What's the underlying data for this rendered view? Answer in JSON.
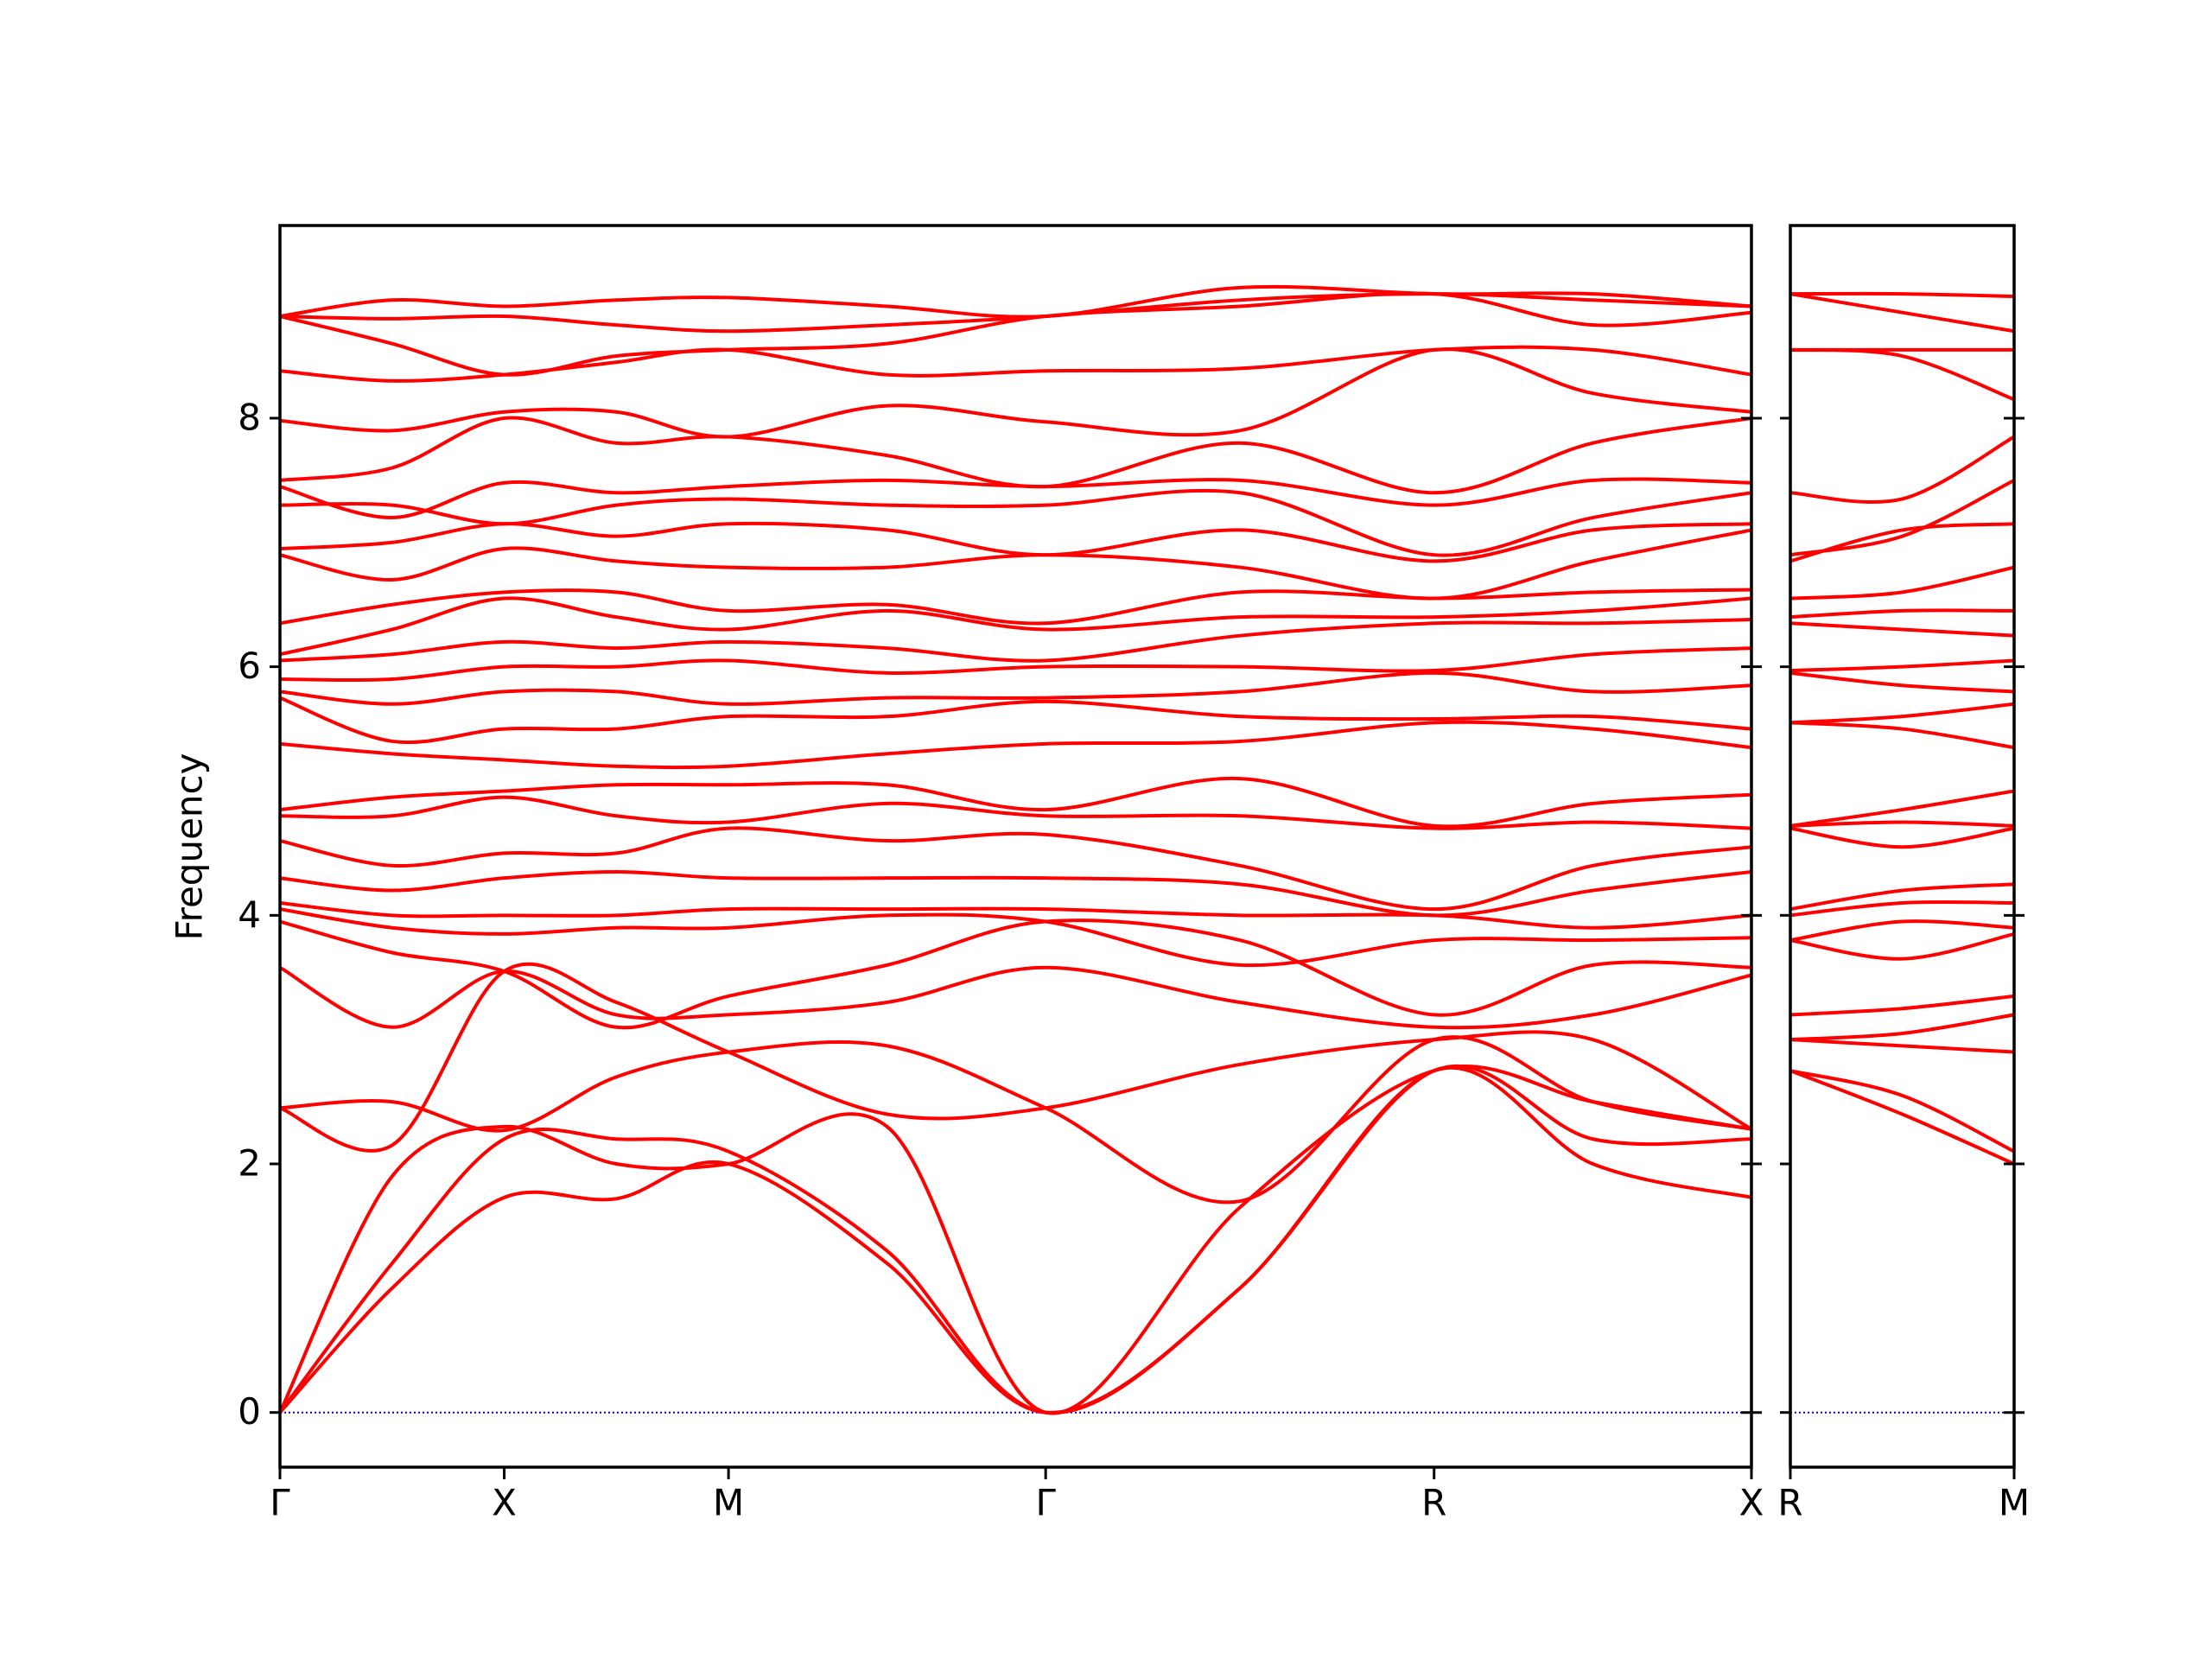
{
  "chart_data": [
    {
      "type": "line",
      "y_label": "Frequency",
      "color": "#ff0000",
      "x": [
        0,
        0.5,
        1,
        1.5,
        2,
        2.707,
        3.414,
        4.28,
        5.146,
        5.854,
        6.561
      ],
      "xlim": [
        0,
        6.561
      ],
      "xticks": [
        {
          "value": 0,
          "label": "Γ"
        },
        {
          "value": 1,
          "label": "X"
        },
        {
          "value": 2,
          "label": "M"
        },
        {
          "value": 3.414,
          "label": "Γ"
        },
        {
          "value": 5.146,
          "label": "R"
        },
        {
          "value": 6.561,
          "label": "X"
        }
      ],
      "ylim": [
        -0.44,
        9.55
      ],
      "yticks": [
        0,
        2,
        4,
        6,
        8
      ],
      "show_ytick_labels": true,
      "zero_line": {
        "value": 0,
        "color": "#0000cc",
        "style": "dotted"
      },
      "series": [
        {
          "values": [
            0,
            1.0,
            1.73,
            1.72,
            2.0,
            1.2,
            0,
            1.0,
            2.75,
            2.0,
            1.73
          ]
        },
        {
          "values": [
            0,
            1.2,
            2.2,
            2.2,
            2.1,
            1.3,
            0,
            1.0,
            2.75,
            2.2,
            2.2
          ]
        },
        {
          "values": [
            0,
            1.9,
            2.3,
            2.0,
            2.0,
            2.3,
            0,
            1.65,
            2.75,
            2.5,
            2.28
          ]
        },
        {
          "values": [
            2.45,
            2.5,
            2.27,
            2.7,
            2.9,
            2.95,
            2.45,
            1.7,
            3.0,
            2.5,
            2.28
          ]
        },
        {
          "values": [
            2.45,
            2.15,
            3.55,
            3.3,
            2.9,
            2.4,
            2.45,
            2.8,
            3.0,
            3.0,
            2.28
          ]
        },
        {
          "values": [
            3.58,
            3.1,
            3.55,
            3.2,
            3.2,
            3.3,
            3.58,
            3.3,
            3.1,
            3.2,
            3.52
          ]
        },
        {
          "values": [
            3.95,
            3.7,
            3.55,
            3.1,
            3.35,
            3.6,
            3.95,
            3.8,
            3.2,
            3.6,
            3.58
          ]
        },
        {
          "values": [
            4.05,
            3.9,
            3.85,
            3.9,
            3.9,
            4.0,
            3.95,
            3.6,
            3.8,
            3.8,
            3.82
          ]
        },
        {
          "values": [
            4.1,
            4.0,
            4.0,
            4.0,
            4.05,
            4.05,
            4.05,
            4.0,
            4.0,
            3.9,
            4.0
          ]
        },
        {
          "values": [
            4.3,
            4.2,
            4.3,
            4.35,
            4.3,
            4.3,
            4.3,
            4.25,
            4.0,
            4.2,
            4.35
          ]
        },
        {
          "values": [
            4.6,
            4.4,
            4.5,
            4.5,
            4.7,
            4.6,
            4.65,
            4.4,
            4.05,
            4.4,
            4.55
          ]
        },
        {
          "values": [
            4.8,
            4.8,
            4.95,
            4.8,
            4.75,
            4.9,
            4.8,
            4.8,
            4.7,
            4.75,
            4.7
          ]
        },
        {
          "values": [
            4.85,
            4.95,
            5.0,
            5.05,
            5.05,
            5.05,
            4.85,
            5.1,
            4.72,
            4.9,
            4.97
          ]
        },
        {
          "values": [
            5.38,
            5.3,
            5.25,
            5.2,
            5.2,
            5.3,
            5.38,
            5.4,
            5.55,
            5.5,
            5.35
          ]
        },
        {
          "values": [
            5.75,
            5.4,
            5.5,
            5.5,
            5.6,
            5.6,
            5.72,
            5.6,
            5.58,
            5.6,
            5.5
          ]
        },
        {
          "values": [
            5.8,
            5.7,
            5.8,
            5.8,
            5.7,
            5.75,
            5.75,
            5.8,
            5.95,
            5.8,
            5.85
          ]
        },
        {
          "values": [
            5.9,
            5.9,
            6.0,
            6.0,
            6.05,
            5.95,
            6.0,
            6.0,
            5.97,
            6.1,
            6.15
          ]
        },
        {
          "values": [
            6.05,
            6.1,
            6.2,
            6.15,
            6.2,
            6.15,
            6.05,
            6.25,
            6.35,
            6.35,
            6.38
          ]
        },
        {
          "values": [
            6.1,
            6.3,
            6.55,
            6.4,
            6.3,
            6.45,
            6.3,
            6.4,
            6.4,
            6.45,
            6.55
          ]
        },
        {
          "values": [
            6.35,
            6.5,
            6.6,
            6.6,
            6.45,
            6.5,
            6.35,
            6.6,
            6.55,
            6.6,
            6.62
          ]
        },
        {
          "values": [
            6.9,
            6.7,
            6.95,
            6.85,
            6.8,
            6.8,
            6.9,
            6.8,
            6.55,
            6.85,
            7.1
          ]
        },
        {
          "values": [
            6.95,
            7.0,
            7.15,
            7.05,
            7.15,
            7.1,
            6.9,
            7.1,
            6.85,
            7.1,
            7.15
          ]
        },
        {
          "values": [
            7.3,
            7.3,
            7.15,
            7.3,
            7.35,
            7.3,
            7.3,
            7.4,
            6.9,
            7.2,
            7.4
          ]
        },
        {
          "values": [
            7.45,
            7.2,
            7.48,
            7.4,
            7.45,
            7.5,
            7.45,
            7.5,
            7.3,
            7.5,
            7.48
          ]
        },
        {
          "values": [
            7.5,
            7.6,
            8.0,
            7.8,
            7.85,
            7.7,
            7.45,
            7.8,
            7.4,
            7.8,
            8.0
          ]
        },
        {
          "values": [
            7.98,
            7.9,
            8.05,
            8.05,
            7.85,
            8.1,
            7.97,
            7.9,
            8.55,
            8.2,
            8.05
          ]
        },
        {
          "values": [
            8.38,
            8.3,
            8.35,
            8.45,
            8.55,
            8.35,
            8.38,
            8.4,
            8.55,
            8.55,
            8.35
          ]
        },
        {
          "values": [
            8.82,
            8.6,
            8.35,
            8.5,
            8.55,
            8.6,
            8.82,
            8.9,
            9.0,
            8.75,
            8.85
          ]
        },
        {
          "values": [
            8.82,
            8.8,
            8.82,
            8.75,
            8.7,
            8.75,
            8.82,
            8.95,
            9.0,
            8.95,
            8.9
          ]
        },
        {
          "values": [
            8.82,
            8.95,
            8.9,
            8.95,
            8.97,
            8.9,
            8.82,
            9.05,
            9.0,
            9.0,
            8.9
          ]
        }
      ]
    },
    {
      "type": "line",
      "color": "#ff0000",
      "x": [
        0,
        0.5,
        1
      ],
      "xlim": [
        0,
        1
      ],
      "xticks": [
        {
          "value": 0,
          "label": "R"
        },
        {
          "value": 1,
          "label": "M"
        }
      ],
      "ylim": [
        -0.44,
        9.55
      ],
      "yticks": [
        0,
        2,
        4,
        6,
        8
      ],
      "show_ytick_labels": false,
      "zero_line": {
        "value": 0,
        "color": "#0000cc",
        "style": "dotted"
      },
      "series": [
        {
          "values": [
            2.75,
            2.4,
            2.0
          ]
        },
        {
          "values": [
            2.75,
            2.55,
            2.1
          ]
        },
        {
          "values": [
            3.0,
            2.95,
            2.9
          ]
        },
        {
          "values": [
            3.0,
            3.05,
            3.2
          ]
        },
        {
          "values": [
            3.2,
            3.25,
            3.35
          ]
        },
        {
          "values": [
            3.8,
            3.65,
            3.85
          ]
        },
        {
          "values": [
            3.8,
            3.95,
            3.9
          ]
        },
        {
          "values": [
            4.0,
            4.1,
            4.1
          ]
        },
        {
          "values": [
            4.05,
            4.2,
            4.25
          ]
        },
        {
          "values": [
            4.7,
            4.55,
            4.7
          ]
        },
        {
          "values": [
            4.72,
            4.75,
            4.72
          ]
        },
        {
          "values": [
            4.72,
            4.85,
            5.0
          ]
        },
        {
          "values": [
            5.55,
            5.5,
            5.35
          ]
        },
        {
          "values": [
            5.55,
            5.6,
            5.7
          ]
        },
        {
          "values": [
            5.95,
            5.85,
            5.8
          ]
        },
        {
          "values": [
            5.97,
            6.0,
            6.05
          ]
        },
        {
          "values": [
            6.35,
            6.3,
            6.25
          ]
        },
        {
          "values": [
            6.4,
            6.45,
            6.45
          ]
        },
        {
          "values": [
            6.55,
            6.6,
            6.8
          ]
        },
        {
          "values": [
            6.85,
            7.1,
            7.15
          ]
        },
        {
          "values": [
            6.9,
            7.05,
            7.5
          ]
        },
        {
          "values": [
            7.4,
            7.35,
            7.85
          ]
        },
        {
          "values": [
            8.55,
            8.5,
            8.15
          ]
        },
        {
          "values": [
            8.55,
            8.55,
            8.55
          ]
        },
        {
          "values": [
            9.0,
            8.85,
            8.7
          ]
        },
        {
          "values": [
            9.0,
            9.0,
            8.98
          ]
        }
      ]
    }
  ]
}
